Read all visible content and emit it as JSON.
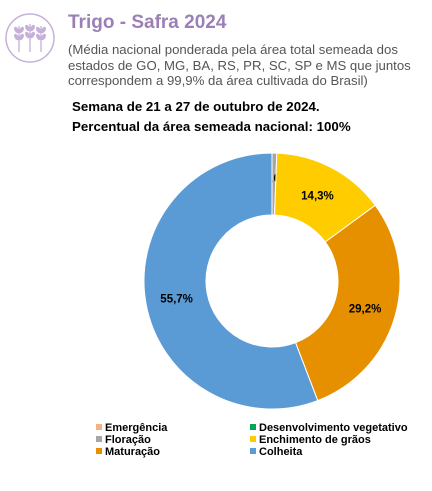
{
  "header": {
    "title": "Trigo - Safra 2024",
    "subtitle": "(Média nacional ponderada pela área total semeada dos estados de GO, MG, BA, RS, PR, SC, SP e MS que juntos correspondem a 99,9% da área cultivada do Brasil)",
    "week": "Semana de 21 a 27 de outubro de 2024.",
    "area_pct": "Percentual da área semeada nacional: 100%"
  },
  "logo": {
    "icon": "wheat-icon",
    "color": "#b79ad0"
  },
  "chart_data": {
    "type": "pie",
    "donut": true,
    "legend_position": "bottom",
    "series": [
      {
        "name": "Emergência",
        "value": 0,
        "label": "",
        "color": "#f4b183"
      },
      {
        "name": "Desenvolvimento vegetativo",
        "value": 0,
        "label": "",
        "color": "#00a651"
      },
      {
        "name": "Floração",
        "value": 0.6,
        "label": "0,6%",
        "color": "#a6a6a6"
      },
      {
        "name": "Enchimento de grãos",
        "value": 14.3,
        "label": "14,3%",
        "color": "#ffcc00"
      },
      {
        "name": "Maturação",
        "value": 29.2,
        "label": "29,2%",
        "color": "#e69000"
      },
      {
        "name": "Colheita",
        "value": 55.7,
        "label": "55,7%",
        "color": "#5b9bd5"
      }
    ]
  }
}
